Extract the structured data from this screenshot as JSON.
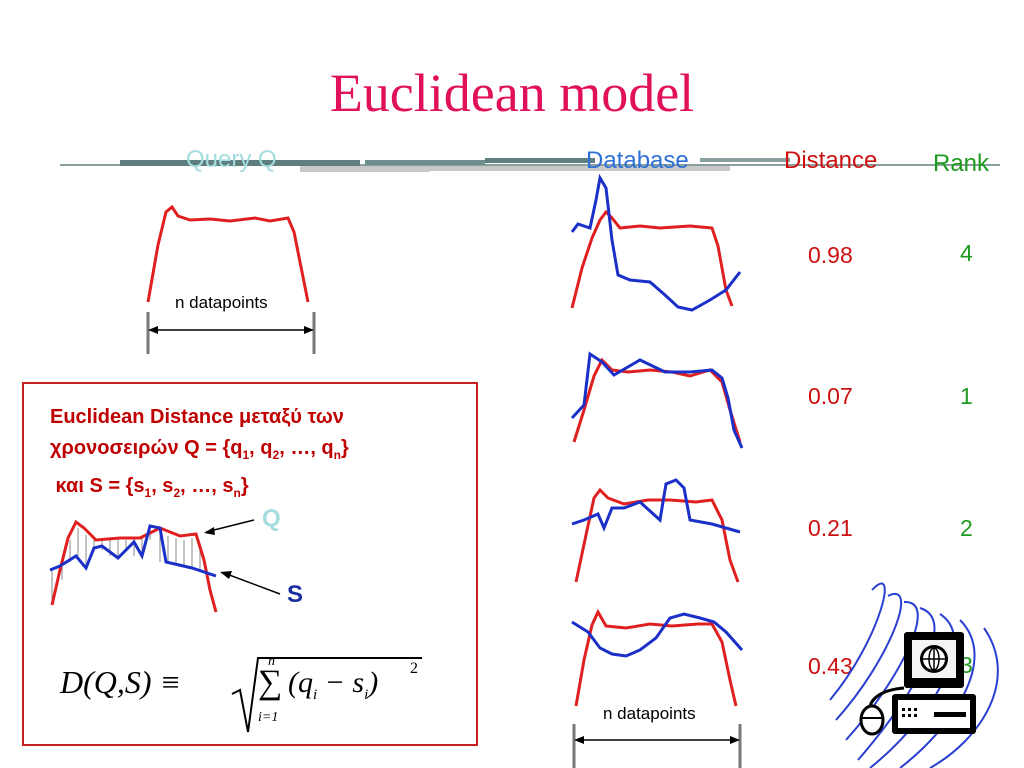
{
  "title": "Euclidean model",
  "headers": {
    "query": "Query Q",
    "database": "Database",
    "distance": "Distance",
    "rank": "Rank"
  },
  "query_label": "n datapoints",
  "database_label": "n datapoints",
  "rows": [
    {
      "distance": "0.98",
      "rank": "4"
    },
    {
      "distance": "0.07",
      "rank": "1"
    },
    {
      "distance": "0.21",
      "rank": "2"
    },
    {
      "distance": "0.43",
      "rank": "3"
    }
  ],
  "definition": {
    "line1": "Euclidean Distance μεταξύ των",
    "line2_a": "χρονοσειρών Q = {q",
    "line2_s1": "1",
    "line2_b": ", q",
    "line2_s2": "2",
    "line2_c": ", …, q",
    "line2_sn": "n",
    "line2_d": "}",
    "line3_a": " και S = {s",
    "line3_s1": "1",
    "line3_b": ", s",
    "line3_s2": "2",
    "line3_c": ", …, s",
    "line3_sn": "n",
    "line3_d": "}"
  },
  "legend": {
    "q": "Q",
    "s": "S"
  },
  "formula": {
    "lhs": "D(Q,S) ≡",
    "upper": "n",
    "lower": "i=1",
    "sigma": "∑",
    "term": "(q",
    "term_qi": "i",
    "term_minus": " − s",
    "term_si": "i",
    "term_close": ")",
    "power": "2"
  },
  "colors": {
    "title": "#e0105a",
    "query_series": "#e02020",
    "database_series": "#1a30c8",
    "distance": "#cc1010",
    "rank": "#1e9a1e"
  },
  "icons": {
    "computer": "computer-icon"
  }
}
